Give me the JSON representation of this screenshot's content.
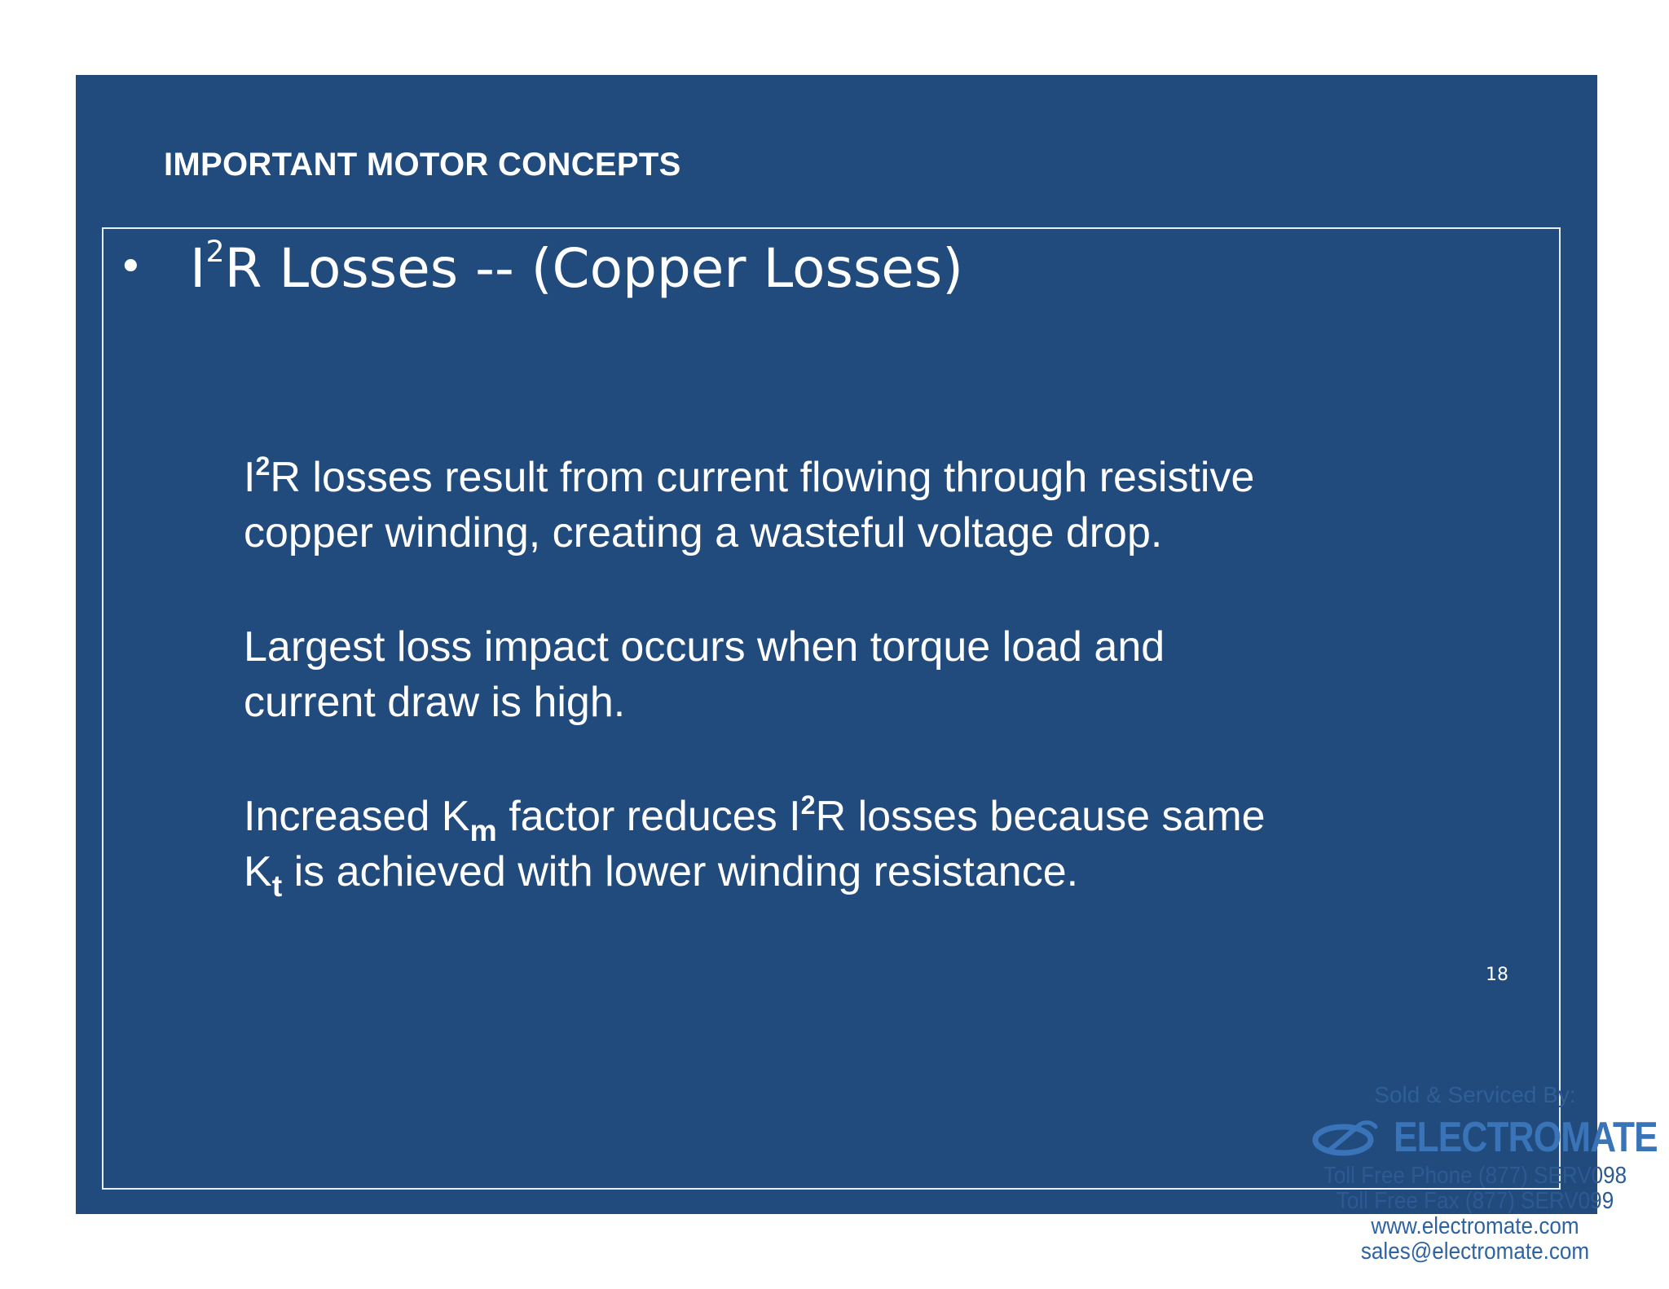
{
  "header": {
    "title": "IMPORTANT MOTOR CONCEPTS"
  },
  "bullet": {
    "symbol": "•",
    "prefix": "I",
    "superscript": "2",
    "rest": "R Losses -- (Copper Losses)"
  },
  "paragraphs": {
    "p1": {
      "l1_pre": "I",
      "l1_sup": "2",
      "l1_post": "R losses result from current flowing through resistive",
      "l2": "copper winding, creating a wasteful voltage drop."
    },
    "p2": {
      "l1": "Largest loss impact occurs when torque load and",
      "l2": "current draw is high."
    },
    "p3": {
      "l1_a": "Increased K",
      "l1_sub": "m",
      "l1_b": " factor reduces I",
      "l1_sup": "2",
      "l1_c": "R losses because same",
      "l2_a": "K",
      "l2_sub": "t",
      "l2_b": " is achieved with lower winding resistance."
    }
  },
  "page_number": "18",
  "watermark": {
    "sold_by": "Sold & Serviced By:",
    "brand": "ELECTROMATE",
    "phone": "Toll Free Phone (877) SERV098",
    "fax": "Toll Free Fax (877) SERV099",
    "website": "www.electromate.com",
    "email": "sales@electromate.com",
    "logo_icon": "electromate-logo-icon"
  },
  "colors": {
    "slide_background": "#214a7d",
    "text": "#ffffff",
    "watermark_blue": "#3a74b8"
  }
}
